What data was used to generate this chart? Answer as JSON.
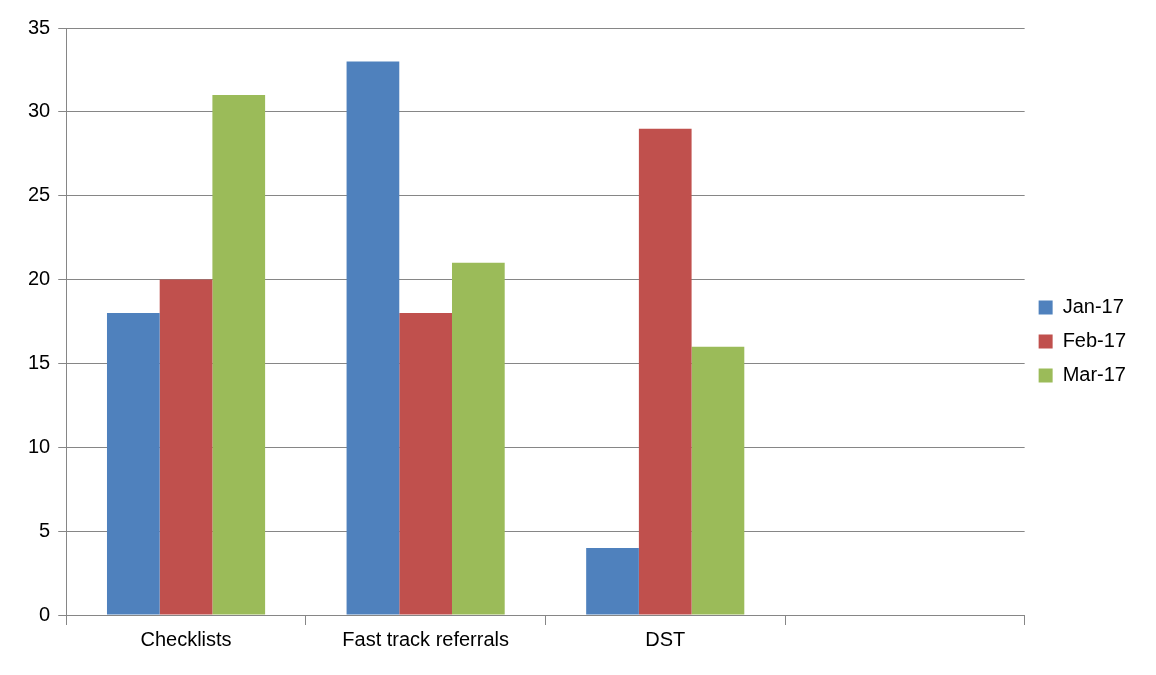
{
  "chart_data": {
    "type": "bar",
    "categories": [
      "Checklists",
      "Fast track referrals",
      "DST",
      null
    ],
    "series": [
      {
        "name": "Jan-17",
        "color": "#4f81bd",
        "values": [
          18,
          33,
          4,
          null
        ]
      },
      {
        "name": "Feb-17",
        "color": "#c0504d",
        "values": [
          20,
          18,
          29,
          null
        ]
      },
      {
        "name": "Mar-17",
        "color": "#9bbb59",
        "values": [
          31,
          21,
          16,
          null
        ]
      }
    ],
    "ylim": [
      0,
      35
    ],
    "yticks": [
      0,
      5,
      10,
      15,
      20,
      25,
      30,
      35
    ],
    "grid": "y",
    "legend": "right"
  }
}
